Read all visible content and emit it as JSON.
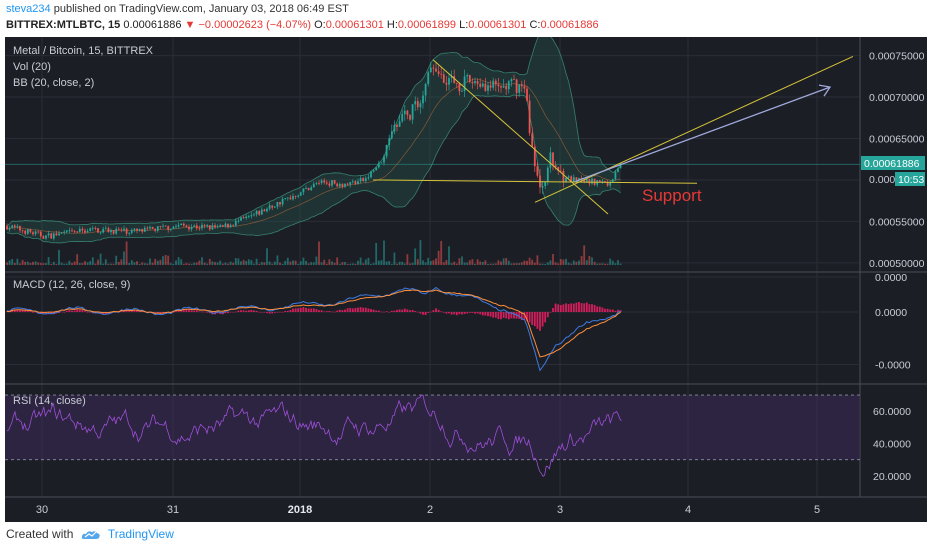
{
  "header": {
    "user": "steva234",
    "published_text": "published on TradingView.com, January 03, 2018 06:49 EST",
    "symbol": "BITTREX:MTLBTC, 15",
    "last": "0.00061886",
    "change_arrow": "▼",
    "change": "−0.00002623 (−4.07%)",
    "open_label": "O:",
    "open": "0.00061301",
    "high_label": "H:",
    "high": "0.00061899",
    "low_label": "L:",
    "low": "0.00061301",
    "close_label": "C:",
    "close": "0.00061886"
  },
  "legend": {
    "title": "Metal / Bitcoin, 15, BITTREX",
    "vol": "Vol (20)",
    "bb": "BB (20, close, 2)",
    "macd": "MACD (12, 26, close, 9)",
    "rsi": "RSI (14, close)"
  },
  "annotation": {
    "support": "Support"
  },
  "price_tags": {
    "last_price": "0.00061886",
    "price_partial": "0.000",
    "countdown": "10:53"
  },
  "footer": {
    "created_with": "Created with",
    "brand": "TradingView"
  },
  "colors": {
    "bg": "#1c1e26",
    "up": "#26a69a",
    "down": "#ef5350",
    "bb": "#2e7d6a",
    "trend_yellow": "#d4c43a",
    "arrow": "#9fa8da",
    "support": "#e53935",
    "macd_line": "#3d7be0",
    "signal_line": "#ff8f3a",
    "hist": "#e91e63",
    "rsi_line": "#9c4fd6",
    "rsi_band": "#3a2a55",
    "price_tag": "#26a69a"
  },
  "chart_data": [
    {
      "type": "candlestick",
      "title": "Metal / Bitcoin, 15, BITTREX",
      "x_ticks": [
        "30",
        "31",
        "2018",
        "2",
        "3",
        "4",
        "5"
      ],
      "y_ticks": [
        "0.00075000",
        "0.00070000",
        "0.00065000",
        "0.00060000",
        "0.00055000",
        "0.00050000"
      ],
      "ylim": [
        0.000495,
        0.00077
      ],
      "path": [
        [
          0,
          0.000545
        ],
        [
          40,
          0.000532
        ],
        [
          85,
          0.00054
        ],
        [
          135,
          0.000538
        ],
        [
          175,
          0.000545
        ],
        [
          215,
          0.000542
        ],
        [
          245,
          0.000555
        ],
        [
          270,
          0.00057
        ],
        [
          295,
          0.000585
        ],
        [
          315,
          0.000598
        ],
        [
          340,
          0.000595
        ],
        [
          360,
          0.0006
        ],
        [
          375,
          0.00062
        ],
        [
          390,
          0.000665
        ],
        [
          405,
          0.00068
        ],
        [
          418,
          0.000705
        ],
        [
          428,
          0.00074
        ],
        [
          440,
          0.000725
        ],
        [
          455,
          0.000715
        ],
        [
          470,
          0.00072
        ],
        [
          490,
          0.00071
        ],
        [
          510,
          0.000715
        ],
        [
          520,
          0.00071
        ],
        [
          527,
          0.00064
        ],
        [
          535,
          0.000585
        ],
        [
          545,
          0.000625
        ],
        [
          555,
          0.00061
        ],
        [
          565,
          0.0006
        ],
        [
          580,
          0.000598
        ],
        [
          595,
          0.000598
        ],
        [
          605,
          0.000595
        ],
        [
          612,
          0.000615
        ],
        [
          618,
          0.00062
        ]
      ],
      "volume_max": 5.5e-05,
      "series": [
        {
          "name": "Vol (20)"
        },
        {
          "name": "BB (20, close, 2)"
        }
      ]
    },
    {
      "type": "line",
      "title": "MACD (12, 26, close, 9)",
      "y_ticks": [
        "0.0000",
        "0.0000",
        "-0.0000"
      ],
      "ylim": [
        -4e-05,
        2e-05
      ],
      "series": [
        {
          "name": "MACD",
          "points": [
            [
              0,
              0
            ],
            [
              60,
              1e-06
            ],
            [
              150,
              0
            ],
            [
              250,
              2e-06
            ],
            [
              300,
              4e-06
            ],
            [
              350,
              7e-06
            ],
            [
              380,
              1.1e-05
            ],
            [
              400,
              1.3e-05
            ],
            [
              420,
              9e-06
            ],
            [
              430,
              1.5e-05
            ],
            [
              450,
              1e-05
            ],
            [
              500,
              2e-06
            ],
            [
              520,
              -6e-06
            ],
            [
              535,
              -3.4e-05
            ],
            [
              550,
              -1.8e-05
            ],
            [
              580,
              -8e-06
            ],
            [
              600,
              -3e-06
            ],
            [
              618,
              2e-06
            ]
          ]
        },
        {
          "name": "Signal",
          "points": [
            [
              0,
              0
            ],
            [
              60,
              1e-06
            ],
            [
              150,
              0
            ],
            [
              250,
              2e-06
            ],
            [
              300,
              3e-06
            ],
            [
              350,
              6e-06
            ],
            [
              380,
              1e-05
            ],
            [
              400,
              1.2e-05
            ],
            [
              420,
              1.1e-05
            ],
            [
              430,
              1.3e-05
            ],
            [
              450,
              1.1e-05
            ],
            [
              500,
              4e-06
            ],
            [
              520,
              -2e-06
            ],
            [
              535,
              -2.6e-05
            ],
            [
              550,
              -2.2e-05
            ],
            [
              580,
              -1.1e-05
            ],
            [
              600,
              -5e-06
            ],
            [
              618,
              1e-06
            ]
          ]
        }
      ]
    },
    {
      "type": "line",
      "title": "RSI (14, close)",
      "y_ticks": [
        "60.0000",
        "40.0000",
        "20.0000"
      ],
      "ylim": [
        10,
        75
      ],
      "band": [
        30,
        70
      ],
      "series": [
        {
          "name": "RSI",
          "base": 50
        }
      ]
    }
  ]
}
